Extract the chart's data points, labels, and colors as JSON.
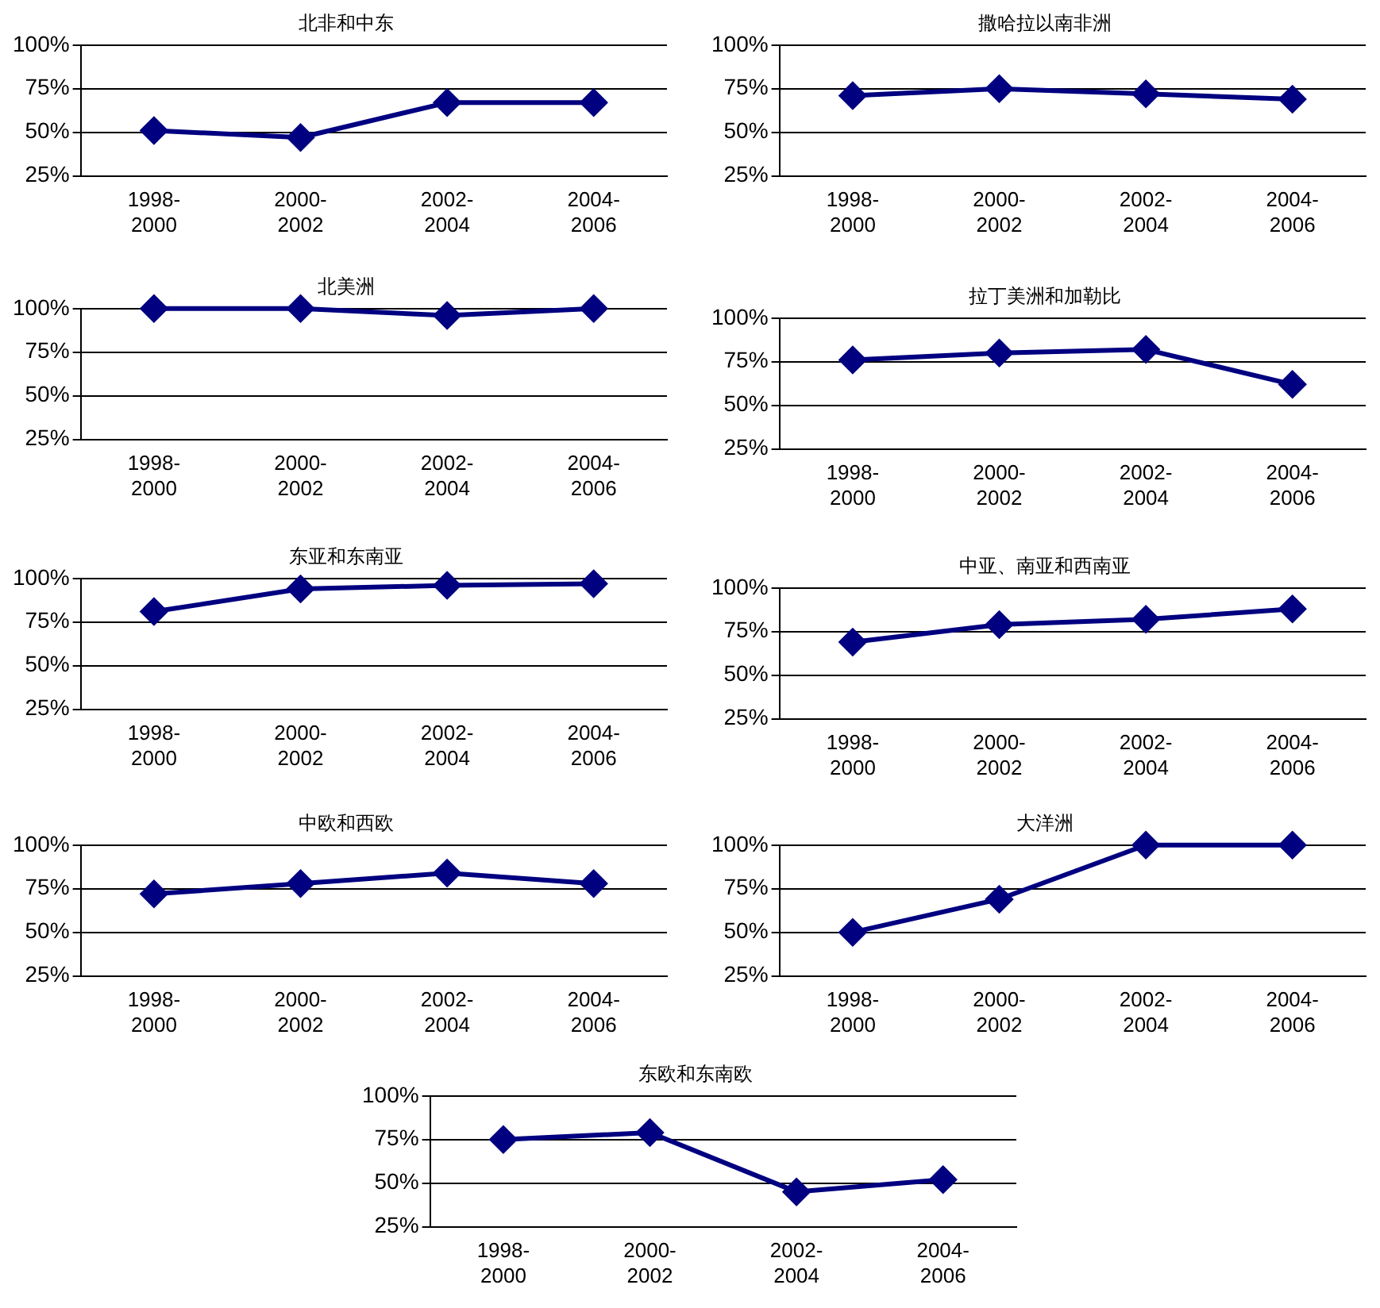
{
  "chart_data": [
    {
      "type": "line",
      "title": "北非和中东",
      "categories": [
        "1998-2000",
        "2000-2002",
        "2002-2004",
        "2004-2006"
      ],
      "values": [
        51,
        47,
        67,
        67
      ],
      "color": "#000080",
      "ylim": [
        25,
        100
      ],
      "yticks": [
        {
          "value": 25,
          "label": "25%"
        },
        {
          "value": 50,
          "label": "50%"
        },
        {
          "value": 75,
          "label": "75%"
        },
        {
          "value": 100,
          "label": "100%"
        }
      ],
      "grid": "y",
      "legend": false,
      "marker": "diamond",
      "line_style": "solid"
    },
    {
      "type": "line",
      "title": "撒哈拉以南非洲",
      "categories": [
        "1998-2000",
        "2000-2002",
        "2002-2004",
        "2004-2006"
      ],
      "values": [
        71,
        75,
        72,
        69
      ],
      "color": "#000080",
      "ylim": [
        25,
        100
      ],
      "yticks": [
        {
          "value": 25,
          "label": "25%"
        },
        {
          "value": 50,
          "label": "50%"
        },
        {
          "value": 75,
          "label": "75%"
        },
        {
          "value": 100,
          "label": "100%"
        }
      ],
      "grid": "y",
      "legend": false,
      "marker": "diamond",
      "line_style": "solid"
    },
    {
      "type": "line",
      "title": "北美洲",
      "categories": [
        "1998-2000",
        "2000-2002",
        "2002-2004",
        "2004-2006"
      ],
      "values": [
        100,
        100,
        96,
        100
      ],
      "color": "#000080",
      "ylim": [
        25,
        100
      ],
      "yticks": [
        {
          "value": 25,
          "label": "25%"
        },
        {
          "value": 50,
          "label": "50%"
        },
        {
          "value": 75,
          "label": "75%"
        },
        {
          "value": 100,
          "label": "100%"
        }
      ],
      "grid": "y",
      "legend": false,
      "marker": "diamond",
      "line_style": "solid"
    },
    {
      "type": "line",
      "title": "拉丁美洲和加勒比",
      "categories": [
        "1998-2000",
        "2000-2002",
        "2002-2004",
        "2004-2006"
      ],
      "values": [
        76,
        80,
        82,
        62
      ],
      "color": "#000080",
      "ylim": [
        25,
        100
      ],
      "yticks": [
        {
          "value": 25,
          "label": "25%"
        },
        {
          "value": 50,
          "label": "50%"
        },
        {
          "value": 75,
          "label": "75%"
        },
        {
          "value": 100,
          "label": "100%"
        }
      ],
      "grid": "y",
      "legend": false,
      "marker": "diamond",
      "line_style": "solid"
    },
    {
      "type": "line",
      "title": "东亚和东南亚",
      "categories": [
        "1998-2000",
        "2000-2002",
        "2002-2004",
        "2004-2006"
      ],
      "values": [
        81,
        94,
        96,
        97
      ],
      "color": "#000080",
      "ylim": [
        25,
        100
      ],
      "yticks": [
        {
          "value": 25,
          "label": "25%"
        },
        {
          "value": 50,
          "label": "50%"
        },
        {
          "value": 75,
          "label": "75%"
        },
        {
          "value": 100,
          "label": "100%"
        }
      ],
      "grid": "y",
      "legend": false,
      "marker": "diamond",
      "line_style": "solid"
    },
    {
      "type": "line",
      "title": "中亚、南亚和西南亚",
      "categories": [
        "1998-2000",
        "2000-2002",
        "2002-2004",
        "2004-2006"
      ],
      "values": [
        69,
        79,
        82,
        88
      ],
      "color": "#000080",
      "ylim": [
        25,
        100
      ],
      "yticks": [
        {
          "value": 25,
          "label": "25%"
        },
        {
          "value": 50,
          "label": "50%"
        },
        {
          "value": 75,
          "label": "75%"
        },
        {
          "value": 100,
          "label": "100%"
        }
      ],
      "grid": "y",
      "legend": false,
      "marker": "diamond",
      "line_style": "solid"
    },
    {
      "type": "line",
      "title": "中欧和西欧",
      "categories": [
        "1998-2000",
        "2000-2002",
        "2002-2004",
        "2004-2006"
      ],
      "values": [
        72,
        78,
        84,
        78
      ],
      "color": "#000080",
      "ylim": [
        25,
        100
      ],
      "yticks": [
        {
          "value": 25,
          "label": "25%"
        },
        {
          "value": 50,
          "label": "50%"
        },
        {
          "value": 75,
          "label": "75%"
        },
        {
          "value": 100,
          "label": "100%"
        }
      ],
      "grid": "y",
      "legend": false,
      "marker": "diamond",
      "line_style": "solid"
    },
    {
      "type": "line",
      "title": "大洋洲",
      "categories": [
        "1998-2000",
        "2000-2002",
        "2002-2004",
        "2004-2006"
      ],
      "values": [
        50,
        69,
        100,
        100
      ],
      "color": "#000080",
      "ylim": [
        25,
        100
      ],
      "yticks": [
        {
          "value": 25,
          "label": "25%"
        },
        {
          "value": 50,
          "label": "50%"
        },
        {
          "value": 75,
          "label": "75%"
        },
        {
          "value": 100,
          "label": "100%"
        }
      ],
      "grid": "y",
      "legend": false,
      "marker": "diamond",
      "line_style": "solid"
    },
    {
      "type": "line",
      "title": "东欧和东南欧",
      "categories": [
        "1998-2000",
        "2000-2002",
        "2002-2004",
        "2004-2006"
      ],
      "values": [
        75,
        79,
        45,
        52
      ],
      "color": "#000080",
      "ylim": [
        25,
        100
      ],
      "yticks": [
        {
          "value": 25,
          "label": "25%"
        },
        {
          "value": 50,
          "label": "50%"
        },
        {
          "value": 75,
          "label": "75%"
        },
        {
          "value": 100,
          "label": "100%"
        }
      ],
      "grid": "y",
      "legend": false,
      "marker": "diamond",
      "line_style": "solid"
    }
  ]
}
